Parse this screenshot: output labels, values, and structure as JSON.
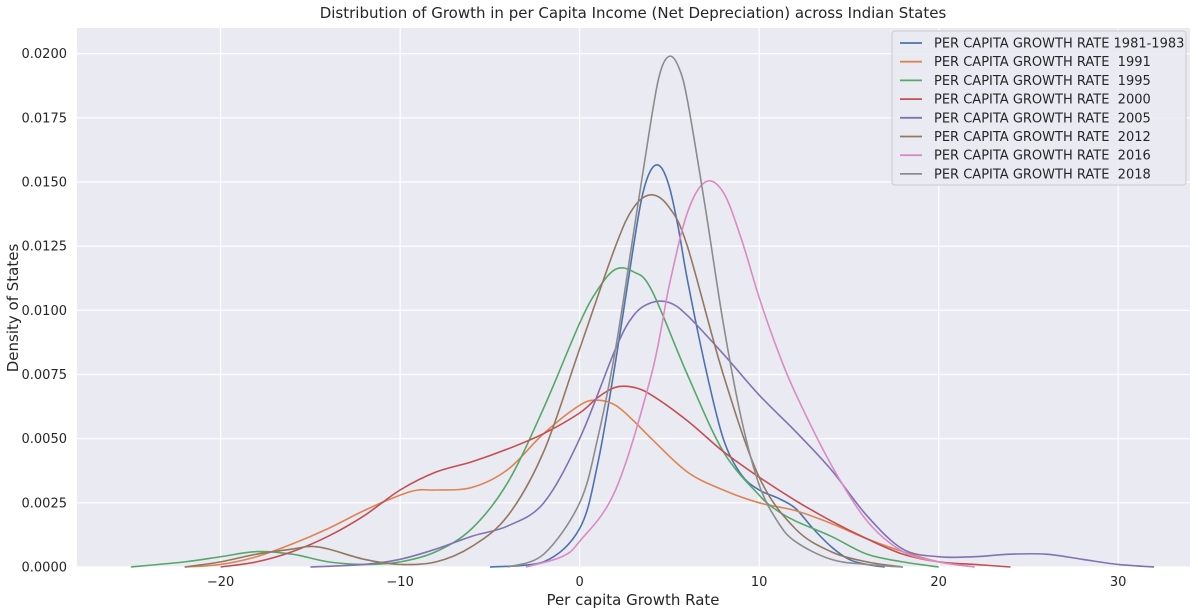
{
  "chart_data": {
    "type": "line",
    "title": "Distribution of Growth in per Capita Income (Net Depreciation) across Indian States",
    "xlabel": "Per capita Growth Rate",
    "ylabel": "Density of States",
    "xlim": [
      -28,
      34
    ],
    "ylim": [
      0,
      0.021
    ],
    "xticks": [
      -20,
      -10,
      0,
      10,
      20,
      30
    ],
    "xtick_labels": [
      "−20",
      "−10",
      "0",
      "10",
      "20",
      "30"
    ],
    "yticks": [
      0,
      0.0025,
      0.005,
      0.0075,
      0.01,
      0.0125,
      0.015,
      0.0175,
      0.02
    ],
    "ytick_labels": [
      "0.0000",
      "0.0025",
      "0.0050",
      "0.0075",
      "0.0100",
      "0.0125",
      "0.0150",
      "0.0175",
      "0.0200"
    ],
    "grid": true,
    "background": "#eaeaf2",
    "legend_position": "top-right",
    "series": [
      {
        "name": "PER CAPITA GROWTH RATE 1981-1983",
        "color": "#4c72b0",
        "x": [
          -5,
          -2,
          0,
          1,
          2,
          3,
          3.5,
          4,
          4.5,
          5,
          5.5,
          6,
          7,
          8,
          9,
          10,
          11,
          12,
          13,
          14,
          15,
          16,
          17
        ],
        "y": [
          0,
          0.0002,
          0.0015,
          0.004,
          0.008,
          0.0125,
          0.0145,
          0.0155,
          0.0156,
          0.0148,
          0.0132,
          0.0112,
          0.0078,
          0.005,
          0.0036,
          0.003,
          0.0027,
          0.0023,
          0.0015,
          0.0008,
          0.0003,
          0.0001,
          0
        ]
      },
      {
        "name": "PER CAPITA GROWTH RATE  1991",
        "color": "#dd8452",
        "x": [
          -22,
          -20,
          -18,
          -16,
          -14,
          -12,
          -10,
          -9,
          -8,
          -6,
          -4,
          -2,
          0,
          1,
          2,
          3,
          4,
          6,
          8,
          10,
          12,
          14,
          16,
          18,
          20,
          22
        ],
        "y": [
          0,
          0.0001,
          0.0004,
          0.0009,
          0.0015,
          0.0022,
          0.0028,
          0.003,
          0.003,
          0.0031,
          0.0038,
          0.0052,
          0.0063,
          0.0065,
          0.0063,
          0.0057,
          0.005,
          0.0037,
          0.003,
          0.0025,
          0.0022,
          0.0017,
          0.0011,
          0.0006,
          0.0002,
          0
        ]
      },
      {
        "name": "PER CAPITA GROWTH RATE  1995",
        "color": "#55a868",
        "x": [
          -25,
          -22,
          -20,
          -18,
          -16,
          -14,
          -12,
          -10,
          -8,
          -6,
          -4,
          -2,
          0,
          1,
          2,
          3,
          4,
          6,
          8,
          10,
          11,
          12,
          14,
          16,
          18,
          20
        ],
        "y": [
          0,
          0.0002,
          0.0004,
          0.0006,
          0.0005,
          0.0002,
          0.0001,
          0.0002,
          0.0006,
          0.0015,
          0.0033,
          0.0062,
          0.0095,
          0.0108,
          0.0116,
          0.0115,
          0.0108,
          0.0075,
          0.0045,
          0.0028,
          0.0022,
          0.0018,
          0.0012,
          0.0005,
          0.0002,
          0
        ]
      },
      {
        "name": "PER CAPITA GROWTH RATE  2000",
        "color": "#c44e52",
        "x": [
          -20,
          -18,
          -16,
          -14,
          -12,
          -10,
          -8,
          -6,
          -4,
          -2,
          0,
          1,
          2,
          3,
          4,
          6,
          8,
          10,
          12,
          14,
          16,
          18,
          20,
          22,
          24
        ],
        "y": [
          0,
          0.0002,
          0.0006,
          0.0012,
          0.002,
          0.003,
          0.0037,
          0.0041,
          0.0046,
          0.0052,
          0.006,
          0.0066,
          0.007,
          0.007,
          0.0067,
          0.0057,
          0.0045,
          0.0035,
          0.0026,
          0.0018,
          0.0011,
          0.0005,
          0.0002,
          0.0001,
          0
        ]
      },
      {
        "name": "PER CAPITA GROWTH RATE  2005",
        "color": "#8172b3",
        "x": [
          -15,
          -12,
          -10,
          -8,
          -6,
          -4,
          -2,
          0,
          2,
          3,
          4,
          5,
          6,
          8,
          10,
          12,
          14,
          16,
          18,
          20,
          22,
          24,
          26,
          28,
          30,
          32
        ],
        "y": [
          0,
          0.0001,
          0.0003,
          0.0007,
          0.0012,
          0.0016,
          0.0025,
          0.005,
          0.0085,
          0.0098,
          0.0103,
          0.0103,
          0.0098,
          0.0083,
          0.0067,
          0.0053,
          0.0038,
          0.002,
          0.0007,
          0.0004,
          0.0004,
          0.0005,
          0.0005,
          0.0003,
          0.0001,
          0
        ]
      },
      {
        "name": "PER CAPITA GROWTH RATE  2012",
        "color": "#937860",
        "x": [
          -22,
          -20,
          -18,
          -16,
          -15,
          -14,
          -12,
          -10,
          -8,
          -6,
          -4,
          -2,
          0,
          2,
          3,
          4,
          5,
          6,
          8,
          10,
          12,
          14,
          16,
          18
        ],
        "y": [
          0,
          0.0002,
          0.0005,
          0.0007,
          0.0008,
          0.0007,
          0.0003,
          0.0001,
          0.0002,
          0.0008,
          0.002,
          0.0045,
          0.0085,
          0.0125,
          0.014,
          0.0145,
          0.014,
          0.0125,
          0.0075,
          0.0035,
          0.0015,
          0.0006,
          0.0002,
          0
        ]
      },
      {
        "name": "PER CAPITA GROWTH RATE  2016",
        "color": "#da8bc3",
        "x": [
          -3,
          -1,
          0,
          2,
          4,
          5,
          6,
          7,
          8,
          9,
          10,
          11,
          12,
          14,
          16,
          18,
          20,
          22
        ],
        "y": [
          0,
          0.0004,
          0.001,
          0.003,
          0.0075,
          0.011,
          0.0138,
          0.015,
          0.0146,
          0.0128,
          0.0105,
          0.0085,
          0.0068,
          0.004,
          0.0018,
          0.0006,
          0.0002,
          0
        ]
      },
      {
        "name": "PER CAPITA GROWTH RATE  2018",
        "color": "#8c8c8c",
        "x": [
          -4,
          -2,
          0,
          1,
          2,
          3,
          4,
          4.5,
          5,
          5.5,
          6,
          7,
          8,
          9,
          10,
          11,
          12,
          14,
          16,
          18
        ],
        "y": [
          0,
          0.0005,
          0.0025,
          0.005,
          0.0085,
          0.013,
          0.0175,
          0.0193,
          0.0199,
          0.0195,
          0.0182,
          0.014,
          0.0095,
          0.0058,
          0.0032,
          0.0018,
          0.001,
          0.0003,
          0.0001,
          0
        ]
      }
    ]
  }
}
